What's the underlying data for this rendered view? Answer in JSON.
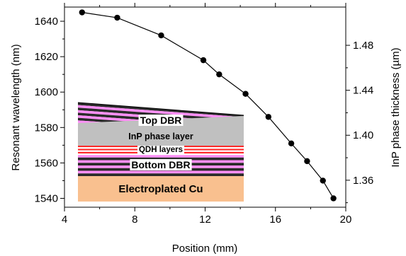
{
  "chart_data": {
    "type": "line",
    "xlabel": "Position (mm)",
    "ylabel": "Resonant wavelength (nm)",
    "y2label": "InP phase thickness (µm)",
    "xlim": [
      4,
      20
    ],
    "ylim": [
      1535,
      1648
    ],
    "xticks": [
      "4",
      "8",
      "12",
      "16",
      "20"
    ],
    "yticks": [
      "1540",
      "1560",
      "1580",
      "1600",
      "1620",
      "1640"
    ],
    "y2ticks": [
      "1.36",
      "1.40",
      "1.44",
      "1.48"
    ],
    "y2tick_values": [
      1.36,
      1.4,
      1.44,
      1.48
    ],
    "y2lim": [
      1.336,
      1.514
    ],
    "grid": false,
    "series": [
      {
        "x": [
          5.0,
          7.0,
          9.5,
          11.9,
          12.8,
          14.3,
          15.6,
          16.9,
          17.8,
          18.7,
          19.3
        ],
        "y": [
          1645,
          1642,
          1632,
          1618,
          1610,
          1599,
          1586,
          1571,
          1561,
          1550,
          1540
        ],
        "color": "#000000",
        "marker": "circle"
      }
    ],
    "inset": {
      "layers": [
        "Top DBR",
        "InP phase layer",
        "QDH layers",
        "Bottom DBR",
        "Electroplated Cu"
      ],
      "colors": {
        "dbr_pink": "#ff8ff7",
        "dbr_dark": "#2a2a2a",
        "inp_gray": "#c0c0c0",
        "qdh_red": "#ff2a2a",
        "qdh_white": "#ffffff",
        "cu_orange": "#f9c08f"
      }
    }
  }
}
